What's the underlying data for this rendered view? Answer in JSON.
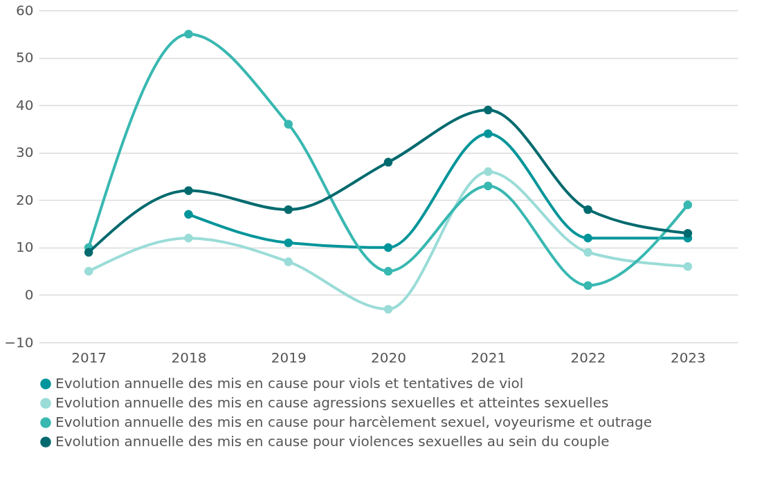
{
  "chart_data": {
    "type": "line",
    "categories": [
      "2017",
      "2018",
      "2019",
      "2020",
      "2021",
      "2022",
      "2023"
    ],
    "series": [
      {
        "name": "Evolution annuelle des mis en cause pour viols et tentatives de viol",
        "color": "#00959a",
        "values": [
          null,
          17,
          11,
          10,
          34,
          12,
          12
        ]
      },
      {
        "name": "Evolution annuelle des mis en cause agressions sexuelles et atteintes sexuelles",
        "color": "#9adcd8",
        "values": [
          5,
          12,
          7,
          -3,
          26,
          9,
          6
        ]
      },
      {
        "name": "Evolution annuelle des mis en cause pour harcèlement sexuel, voyeurisme et outrage",
        "color": "#38b8b1",
        "values": [
          10,
          55,
          36,
          5,
          23,
          2,
          19
        ]
      },
      {
        "name": "Evolution annuelle des mis en cause pour violences sexuelles au sein du couple",
        "color": "#006a6e",
        "values": [
          9,
          22,
          18,
          28,
          39,
          18,
          13
        ]
      }
    ],
    "ylim": [
      -10,
      60
    ],
    "yticks": [
      -10,
      0,
      10,
      20,
      30,
      40,
      50,
      60
    ],
    "grid": "y",
    "legend": "bottom",
    "marker": "circle",
    "line_style": "solid"
  }
}
